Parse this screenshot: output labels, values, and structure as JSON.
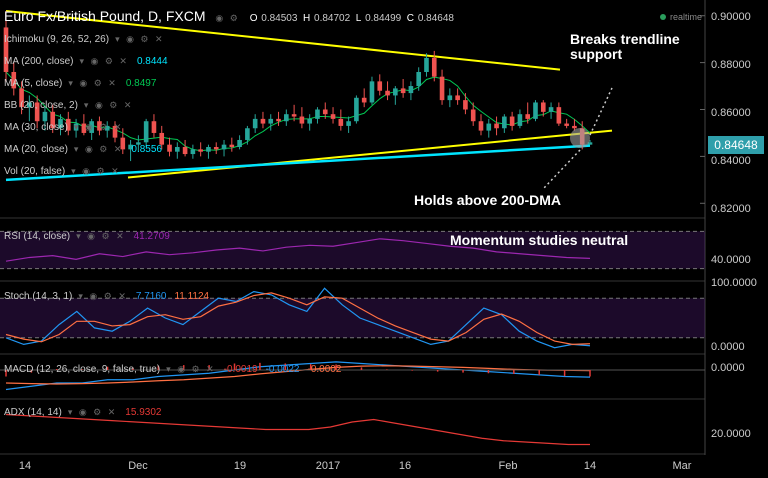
{
  "header": {
    "symbol_line": "Euro Fx/British Pound, D, FXCM",
    "open_label": "O",
    "open": "0.84503",
    "high_label": "H",
    "high": "0.84702",
    "low_label": "L",
    "low": "0.84499",
    "close_label": "C",
    "close": "0.84648",
    "realtime": "realtime"
  },
  "indicators": {
    "ichimoku": "Ichimoku (9, 26, 52, 26)",
    "ma200": {
      "label": "MA (200, close)",
      "value": "0.8444"
    },
    "ma5": {
      "label": "MA (5, close)",
      "value": "0.8497"
    },
    "bb": {
      "label": "BB (20, close, 2)"
    },
    "ma30": {
      "label": "MA (30, close)"
    },
    "ma20": {
      "label": "MA (20, close)",
      "value": "0.8556"
    },
    "vol": {
      "label": "Vol (20, false)"
    }
  },
  "annotations": {
    "breaks_line1": "Breaks trendline",
    "breaks_line2": "support",
    "holds": "Holds above 200-DMA",
    "momentum": "Momentum studies neutral"
  },
  "current_price": "0.84648",
  "colors": {
    "up": "#26a69a",
    "down": "#ef5350",
    "trendline": "#ffff00",
    "ma200": "#00e5ff",
    "ma_green": "#00c853",
    "rsi": "#9c27b0",
    "stoch_k": "#2196f3",
    "stoch_d": "#ff7043",
    "adx": "#e53935"
  },
  "chart_data": [
    {
      "type": "candlestick",
      "title": "Euro Fx/British Pound, D, FXCM",
      "x_ticks": [
        "14",
        "Dec",
        "19",
        "2017",
        "16",
        "Feb",
        "14",
        "Mar"
      ],
      "y_ticks": [
        "0.90000",
        "0.88000",
        "0.86000",
        "0.84000",
        "0.82000"
      ],
      "ylim": [
        0.815,
        0.905
      ],
      "candles": [
        {
          "o": 0.895,
          "h": 0.902,
          "l": 0.872,
          "c": 0.876
        },
        {
          "o": 0.876,
          "h": 0.88,
          "l": 0.866,
          "c": 0.869
        },
        {
          "o": 0.869,
          "h": 0.872,
          "l": 0.858,
          "c": 0.861
        },
        {
          "o": 0.861,
          "h": 0.866,
          "l": 0.855,
          "c": 0.863
        },
        {
          "o": 0.863,
          "h": 0.866,
          "l": 0.852,
          "c": 0.855
        },
        {
          "o": 0.855,
          "h": 0.861,
          "l": 0.851,
          "c": 0.859
        },
        {
          "o": 0.859,
          "h": 0.862,
          "l": 0.85,
          "c": 0.852
        },
        {
          "o": 0.852,
          "h": 0.858,
          "l": 0.849,
          "c": 0.856
        },
        {
          "o": 0.856,
          "h": 0.859,
          "l": 0.849,
          "c": 0.851
        },
        {
          "o": 0.851,
          "h": 0.856,
          "l": 0.848,
          "c": 0.854
        },
        {
          "o": 0.854,
          "h": 0.858,
          "l": 0.849,
          "c": 0.85
        },
        {
          "o": 0.85,
          "h": 0.856,
          "l": 0.847,
          "c": 0.855
        },
        {
          "o": 0.855,
          "h": 0.857,
          "l": 0.849,
          "c": 0.851
        },
        {
          "o": 0.851,
          "h": 0.855,
          "l": 0.848,
          "c": 0.853
        },
        {
          "o": 0.853,
          "h": 0.855,
          "l": 0.846,
          "c": 0.848
        },
        {
          "o": 0.848,
          "h": 0.852,
          "l": 0.841,
          "c": 0.843
        },
        {
          "o": 0.843,
          "h": 0.847,
          "l": 0.838,
          "c": 0.845
        },
        {
          "o": 0.845,
          "h": 0.849,
          "l": 0.842,
          "c": 0.846
        },
        {
          "o": 0.846,
          "h": 0.856,
          "l": 0.844,
          "c": 0.855
        },
        {
          "o": 0.855,
          "h": 0.858,
          "l": 0.848,
          "c": 0.85
        },
        {
          "o": 0.85,
          "h": 0.853,
          "l": 0.843,
          "c": 0.845
        },
        {
          "o": 0.845,
          "h": 0.848,
          "l": 0.84,
          "c": 0.842
        },
        {
          "o": 0.842,
          "h": 0.846,
          "l": 0.839,
          "c": 0.844
        },
        {
          "o": 0.844,
          "h": 0.847,
          "l": 0.84,
          "c": 0.841
        },
        {
          "o": 0.841,
          "h": 0.845,
          "l": 0.839,
          "c": 0.843
        },
        {
          "o": 0.843,
          "h": 0.846,
          "l": 0.84,
          "c": 0.842
        },
        {
          "o": 0.842,
          "h": 0.845,
          "l": 0.839,
          "c": 0.844
        },
        {
          "o": 0.844,
          "h": 0.846,
          "l": 0.841,
          "c": 0.843
        },
        {
          "o": 0.843,
          "h": 0.847,
          "l": 0.84,
          "c": 0.845
        },
        {
          "o": 0.845,
          "h": 0.848,
          "l": 0.842,
          "c": 0.844
        },
        {
          "o": 0.844,
          "h": 0.849,
          "l": 0.843,
          "c": 0.847
        },
        {
          "o": 0.847,
          "h": 0.853,
          "l": 0.845,
          "c": 0.852
        },
        {
          "o": 0.852,
          "h": 0.858,
          "l": 0.85,
          "c": 0.856
        },
        {
          "o": 0.856,
          "h": 0.859,
          "l": 0.852,
          "c": 0.854
        },
        {
          "o": 0.854,
          "h": 0.858,
          "l": 0.851,
          "c": 0.856
        },
        {
          "o": 0.856,
          "h": 0.859,
          "l": 0.853,
          "c": 0.855
        },
        {
          "o": 0.855,
          "h": 0.86,
          "l": 0.853,
          "c": 0.858
        },
        {
          "o": 0.858,
          "h": 0.862,
          "l": 0.855,
          "c": 0.857
        },
        {
          "o": 0.857,
          "h": 0.861,
          "l": 0.852,
          "c": 0.854
        },
        {
          "o": 0.854,
          "h": 0.858,
          "l": 0.851,
          "c": 0.856
        },
        {
          "o": 0.856,
          "h": 0.861,
          "l": 0.854,
          "c": 0.86
        },
        {
          "o": 0.86,
          "h": 0.863,
          "l": 0.856,
          "c": 0.858
        },
        {
          "o": 0.858,
          "h": 0.861,
          "l": 0.854,
          "c": 0.856
        },
        {
          "o": 0.856,
          "h": 0.86,
          "l": 0.851,
          "c": 0.853
        },
        {
          "o": 0.853,
          "h": 0.857,
          "l": 0.85,
          "c": 0.855
        },
        {
          "o": 0.855,
          "h": 0.866,
          "l": 0.854,
          "c": 0.865
        },
        {
          "o": 0.865,
          "h": 0.869,
          "l": 0.861,
          "c": 0.863
        },
        {
          "o": 0.863,
          "h": 0.874,
          "l": 0.862,
          "c": 0.872
        },
        {
          "o": 0.872,
          "h": 0.875,
          "l": 0.866,
          "c": 0.868
        },
        {
          "o": 0.868,
          "h": 0.872,
          "l": 0.864,
          "c": 0.866
        },
        {
          "o": 0.866,
          "h": 0.87,
          "l": 0.862,
          "c": 0.869
        },
        {
          "o": 0.869,
          "h": 0.873,
          "l": 0.865,
          "c": 0.867
        },
        {
          "o": 0.867,
          "h": 0.872,
          "l": 0.864,
          "c": 0.87
        },
        {
          "o": 0.87,
          "h": 0.878,
          "l": 0.868,
          "c": 0.876
        },
        {
          "o": 0.876,
          "h": 0.884,
          "l": 0.874,
          "c": 0.882
        },
        {
          "o": 0.882,
          "h": 0.885,
          "l": 0.872,
          "c": 0.874
        },
        {
          "o": 0.874,
          "h": 0.877,
          "l": 0.862,
          "c": 0.864
        },
        {
          "o": 0.864,
          "h": 0.869,
          "l": 0.861,
          "c": 0.866
        },
        {
          "o": 0.866,
          "h": 0.869,
          "l": 0.862,
          "c": 0.864
        },
        {
          "o": 0.864,
          "h": 0.867,
          "l": 0.858,
          "c": 0.86
        },
        {
          "o": 0.86,
          "h": 0.863,
          "l": 0.853,
          "c": 0.855
        },
        {
          "o": 0.855,
          "h": 0.858,
          "l": 0.849,
          "c": 0.851
        },
        {
          "o": 0.851,
          "h": 0.856,
          "l": 0.848,
          "c": 0.854
        },
        {
          "o": 0.854,
          "h": 0.857,
          "l": 0.849,
          "c": 0.852
        },
        {
          "o": 0.852,
          "h": 0.858,
          "l": 0.85,
          "c": 0.857
        },
        {
          "o": 0.857,
          "h": 0.859,
          "l": 0.851,
          "c": 0.853
        },
        {
          "o": 0.853,
          "h": 0.86,
          "l": 0.852,
          "c": 0.858
        },
        {
          "o": 0.858,
          "h": 0.863,
          "l": 0.854,
          "c": 0.856
        },
        {
          "o": 0.856,
          "h": 0.864,
          "l": 0.855,
          "c": 0.863
        },
        {
          "o": 0.863,
          "h": 0.864,
          "l": 0.857,
          "c": 0.859
        },
        {
          "o": 0.859,
          "h": 0.863,
          "l": 0.856,
          "c": 0.861
        },
        {
          "o": 0.861,
          "h": 0.863,
          "l": 0.853,
          "c": 0.854
        },
        {
          "o": 0.854,
          "h": 0.856,
          "l": 0.852,
          "c": 0.853
        },
        {
          "o": 0.853,
          "h": 0.856,
          "l": 0.851,
          "c": 0.852
        },
        {
          "o": 0.852,
          "h": 0.855,
          "l": 0.843,
          "c": 0.845
        },
        {
          "o": 0.845,
          "h": 0.847,
          "l": 0.845,
          "c": 0.846
        }
      ],
      "ma200": [
        0.83,
        0.8446
      ],
      "trendline_upper": [
        0.902,
        0.877
      ],
      "trendline_lower": [
        0.831,
        0.851
      ]
    },
    {
      "type": "line",
      "title": "RSI (14, close)",
      "value": "41.2709",
      "y_ticks": [
        "40.0000"
      ],
      "ylim": [
        20,
        80
      ],
      "bands": [
        70,
        30
      ],
      "series": [
        {
          "values": [
            38,
            42,
            44,
            40,
            46,
            43,
            48,
            45,
            47,
            50,
            52,
            49,
            53,
            55,
            54,
            58,
            62,
            60,
            57,
            54,
            52,
            48,
            46,
            44,
            42,
            41
          ]
        }
      ]
    },
    {
      "type": "line",
      "title": "Stoch (14, 3, 1)",
      "value_k": "7.7160",
      "value_d": "11.1124",
      "y_ticks": [
        "100.0000",
        "0.0000"
      ],
      "ylim": [
        0,
        100
      ],
      "bands": [
        80,
        20
      ],
      "series": [
        {
          "values": [
            20,
            10,
            15,
            40,
            60,
            35,
            30,
            45,
            65,
            50,
            40,
            60,
            80,
            75,
            90,
            85,
            70,
            60,
            95,
            70,
            50,
            40,
            30,
            20,
            10,
            15,
            40,
            65,
            55,
            30,
            15,
            5,
            10,
            8
          ]
        },
        {
          "values": [
            25,
            18,
            14,
            25,
            45,
            45,
            38,
            40,
            52,
            55,
            48,
            52,
            68,
            74,
            84,
            88,
            80,
            70,
            82,
            80,
            65,
            50,
            38,
            28,
            18,
            15,
            28,
            48,
            56,
            45,
            28,
            15,
            10,
            11
          ]
        }
      ]
    },
    {
      "type": "line",
      "title": "MACD (12, 26, close, 9, false, true)",
      "value_hist": "-0.0019",
      "value_macd": "-0.0022",
      "value_signal": "-0.0002",
      "y_ticks": [
        "0.0000"
      ],
      "ylim": [
        -0.008,
        0.004
      ],
      "series": [
        {
          "values": [
            -0.006,
            -0.005,
            -0.004,
            -0.004,
            -0.003,
            -0.003,
            -0.002,
            -0.0015,
            -0.001,
            0,
            0.001,
            0.0015,
            0.002,
            0.0025,
            0.002,
            0.0015,
            0.001,
            0.0005,
            0,
            -0.0005,
            -0.001,
            -0.0015,
            -0.002,
            -0.0022
          ]
        },
        {
          "values": [
            -0.004,
            -0.0042,
            -0.0043,
            -0.0042,
            -0.004,
            -0.0037,
            -0.0033,
            -0.003,
            -0.0025,
            -0.002,
            -0.0012,
            -0.0005,
            0.0002,
            0.0008,
            0.0012,
            0.0013,
            0.0012,
            0.001,
            0.0008,
            0.0005,
            0.0002,
            0,
            -0.0001,
            -0.0002
          ]
        }
      ]
    },
    {
      "type": "line",
      "title": "ADX (14, 14)",
      "value": "15.9302",
      "y_ticks": [
        "20.0000"
      ],
      "ylim": [
        10,
        50
      ],
      "series": [
        {
          "values": [
            40,
            39,
            38,
            37,
            36,
            35,
            34,
            33,
            32,
            31,
            30,
            29,
            28,
            28,
            28,
            30,
            34,
            36,
            33,
            30,
            27,
            24,
            21,
            19,
            18,
            17,
            16,
            16
          ]
        }
      ]
    }
  ]
}
